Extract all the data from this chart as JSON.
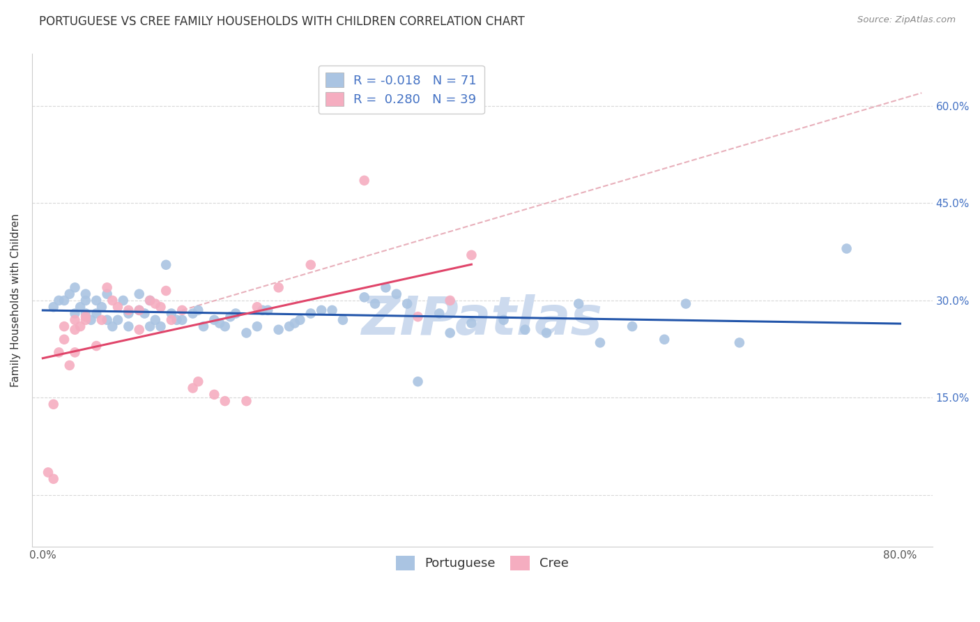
{
  "title": "PORTUGUESE VS CREE FAMILY HOUSEHOLDS WITH CHILDREN CORRELATION CHART",
  "source": "Source: ZipAtlas.com",
  "ylabel": "Family Households with Children",
  "xlim": [
    -0.01,
    0.83
  ],
  "ylim": [
    -0.08,
    0.68
  ],
  "portuguese_color": "#aac4e2",
  "cree_color": "#f5adc0",
  "portuguese_line_color": "#2255aa",
  "cree_line_color": "#e0456a",
  "diag_line_color": "#e8b0bb",
  "legend_blue_patch": "#aac4e2",
  "legend_pink_patch": "#f5adc0",
  "legend_text_color": "#4472c4",
  "R_portuguese": -0.018,
  "N_portuguese": 71,
  "R_cree": 0.28,
  "N_cree": 39,
  "portuguese_x": [
    0.01,
    0.015,
    0.02,
    0.025,
    0.03,
    0.03,
    0.035,
    0.04,
    0.04,
    0.04,
    0.045,
    0.05,
    0.05,
    0.055,
    0.06,
    0.06,
    0.065,
    0.07,
    0.075,
    0.08,
    0.08,
    0.09,
    0.09,
    0.095,
    0.1,
    0.1,
    0.105,
    0.11,
    0.115,
    0.12,
    0.125,
    0.13,
    0.14,
    0.145,
    0.15,
    0.16,
    0.165,
    0.17,
    0.175,
    0.18,
    0.19,
    0.2,
    0.205,
    0.21,
    0.22,
    0.23,
    0.235,
    0.24,
    0.25,
    0.26,
    0.27,
    0.28,
    0.3,
    0.31,
    0.32,
    0.33,
    0.34,
    0.35,
    0.37,
    0.38,
    0.4,
    0.43,
    0.45,
    0.47,
    0.5,
    0.52,
    0.55,
    0.58,
    0.6,
    0.65,
    0.75
  ],
  "portuguese_y": [
    0.29,
    0.3,
    0.3,
    0.31,
    0.28,
    0.32,
    0.29,
    0.28,
    0.3,
    0.31,
    0.27,
    0.28,
    0.3,
    0.29,
    0.27,
    0.31,
    0.26,
    0.27,
    0.3,
    0.26,
    0.28,
    0.285,
    0.31,
    0.28,
    0.26,
    0.3,
    0.27,
    0.26,
    0.355,
    0.28,
    0.27,
    0.27,
    0.28,
    0.285,
    0.26,
    0.27,
    0.265,
    0.26,
    0.275,
    0.28,
    0.25,
    0.26,
    0.285,
    0.285,
    0.255,
    0.26,
    0.265,
    0.27,
    0.28,
    0.285,
    0.285,
    0.27,
    0.305,
    0.295,
    0.32,
    0.31,
    0.295,
    0.175,
    0.28,
    0.25,
    0.265,
    0.27,
    0.255,
    0.25,
    0.295,
    0.235,
    0.26,
    0.24,
    0.295,
    0.235,
    0.38
  ],
  "cree_x": [
    0.005,
    0.01,
    0.01,
    0.015,
    0.02,
    0.02,
    0.025,
    0.03,
    0.03,
    0.03,
    0.035,
    0.04,
    0.04,
    0.05,
    0.055,
    0.06,
    0.065,
    0.07,
    0.08,
    0.09,
    0.09,
    0.1,
    0.105,
    0.11,
    0.115,
    0.12,
    0.13,
    0.14,
    0.145,
    0.16,
    0.17,
    0.19,
    0.2,
    0.22,
    0.25,
    0.3,
    0.35,
    0.38,
    0.4
  ],
  "cree_y": [
    0.035,
    0.025,
    0.14,
    0.22,
    0.24,
    0.26,
    0.2,
    0.22,
    0.255,
    0.27,
    0.26,
    0.275,
    0.27,
    0.23,
    0.27,
    0.32,
    0.3,
    0.29,
    0.285,
    0.255,
    0.285,
    0.3,
    0.295,
    0.29,
    0.315,
    0.27,
    0.285,
    0.165,
    0.175,
    0.155,
    0.145,
    0.145,
    0.29,
    0.32,
    0.355,
    0.485,
    0.275,
    0.3,
    0.37
  ],
  "background_color": "#ffffff",
  "grid_color": "#d8d8d8",
  "title_fontsize": 12,
  "source_fontsize": 9.5,
  "axis_label_fontsize": 11,
  "tick_fontsize": 11,
  "legend_fontsize": 13,
  "watermark_text": "ZIPatlas",
  "watermark_color": "#ccdaee",
  "watermark_fontsize": 55
}
